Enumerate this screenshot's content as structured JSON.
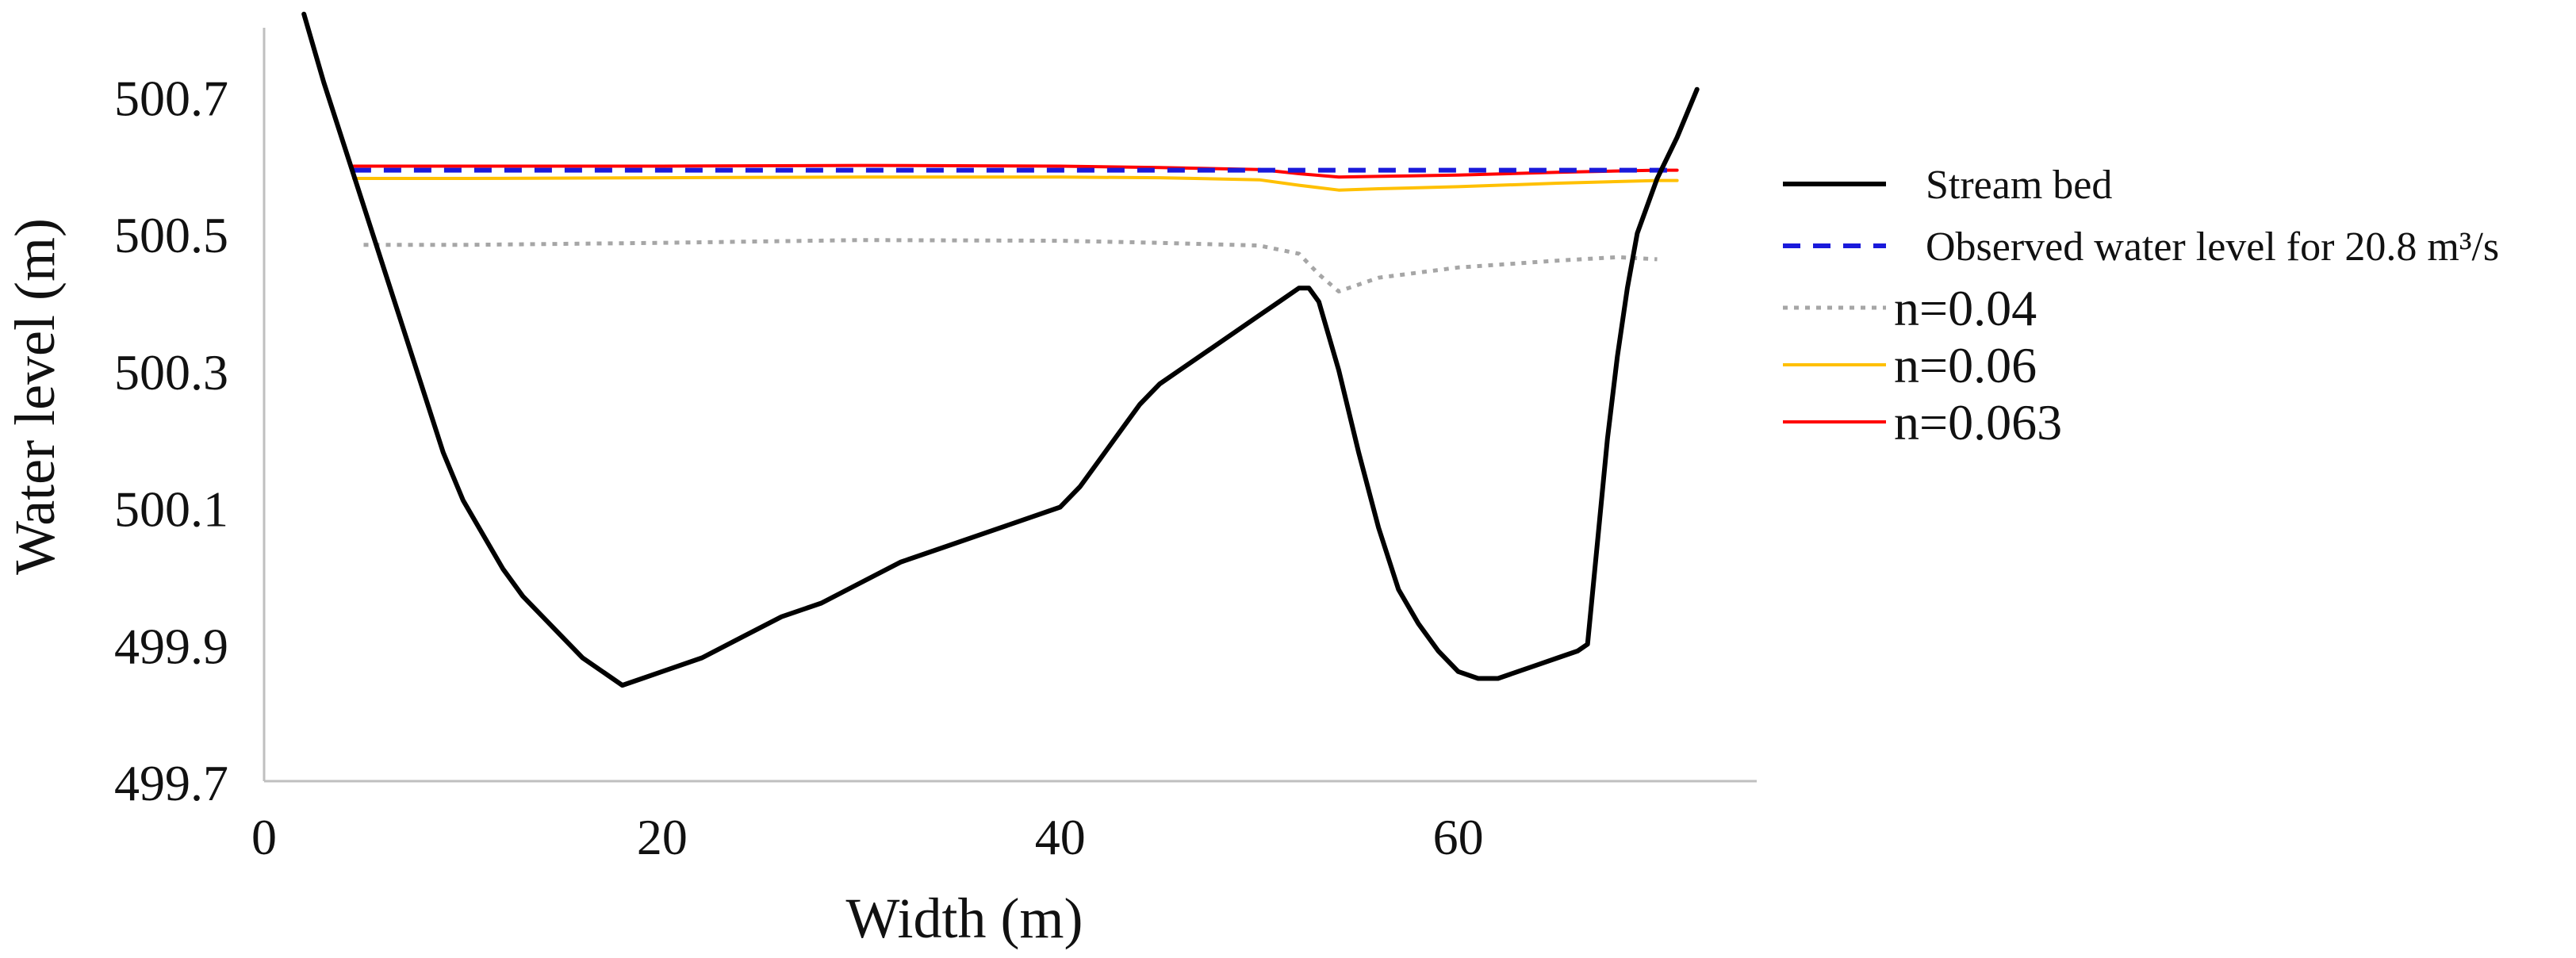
{
  "chart_data": {
    "type": "line",
    "title": "",
    "xlabel": "Width (m)",
    "ylabel": "Water level (m)",
    "xlim": [
      0,
      75
    ],
    "ylim": [
      499.7,
      500.8
    ],
    "xticks": [
      0,
      20,
      40,
      60
    ],
    "xtick_labels": [
      "0",
      "20",
      "40",
      "60"
    ],
    "yticks": [
      499.7,
      499.9,
      500.1,
      500.3,
      500.5,
      500.7
    ],
    "ytick_labels": [
      "499.7",
      "499.9",
      "500.1",
      "500.3",
      "500.5",
      "500.7"
    ],
    "grid": false,
    "legend_position": "right",
    "series": [
      {
        "name": "Stream bed",
        "color": "#000000",
        "dash": "solid",
        "x": [
          2,
          3,
          4,
          5,
          6,
          7,
          8,
          9,
          10,
          11,
          12,
          13,
          14,
          15,
          16,
          17,
          18,
          19,
          20,
          22,
          24,
          26,
          28,
          30,
          32,
          34,
          36,
          38,
          40,
          41,
          42,
          43,
          44,
          45,
          46,
          48,
          50,
          51,
          52,
          52.5,
          53,
          54,
          55,
          56,
          57,
          58,
          59,
          60,
          61,
          62,
          63,
          64,
          65,
          66,
          66.5,
          67,
          67.5,
          68,
          68.5,
          69,
          70,
          71,
          72
        ],
        "y": [
          500.82,
          500.72,
          500.63,
          500.54,
          500.45,
          500.36,
          500.27,
          500.18,
          500.11,
          500.06,
          500.01,
          499.97,
          499.94,
          499.91,
          499.88,
          499.86,
          499.84,
          499.85,
          499.86,
          499.88,
          499.91,
          499.94,
          499.96,
          499.99,
          500.02,
          500.04,
          500.06,
          500.08,
          500.1,
          500.13,
          500.17,
          500.21,
          500.25,
          500.28,
          500.3,
          500.34,
          500.38,
          500.4,
          500.42,
          500.42,
          500.4,
          500.3,
          500.18,
          500.07,
          499.98,
          499.93,
          499.89,
          499.86,
          499.85,
          499.85,
          499.86,
          499.87,
          499.88,
          499.89,
          499.9,
          500.05,
          500.2,
          500.32,
          500.42,
          500.5,
          500.58,
          500.64,
          500.71
        ]
      },
      {
        "name": "Observed water level for 20.8 m³/s",
        "color": "#1a1adb",
        "dash": "dashed",
        "x": [
          4.5,
          10,
          20,
          30,
          40,
          50,
          53,
          60,
          70,
          71
        ],
        "y": [
          500.592,
          500.592,
          500.592,
          500.592,
          500.592,
          500.592,
          500.592,
          500.592,
          500.592,
          500.592
        ]
      },
      {
        "name": "n=0.04",
        "color": "#a6a6a6",
        "dash": "dotted",
        "x": [
          5,
          10,
          20,
          30,
          40,
          45,
          50,
          52,
          53,
          54,
          56,
          60,
          65,
          68,
          70
        ],
        "y": [
          500.483,
          500.483,
          500.486,
          500.49,
          500.489,
          500.486,
          500.482,
          500.47,
          500.44,
          500.415,
          500.435,
          500.45,
          500.46,
          500.465,
          500.462
        ]
      },
      {
        "name": "n=0.06",
        "color": "#ffc000",
        "dash": "solid",
        "x": [
          4.5,
          10,
          20,
          30,
          40,
          45,
          50,
          52,
          54,
          56,
          60,
          65,
          70,
          71
        ],
        "y": [
          500.58,
          500.58,
          500.581,
          500.582,
          500.582,
          500.581,
          500.578,
          500.57,
          500.563,
          500.565,
          500.568,
          500.573,
          500.577,
          500.577
        ]
      },
      {
        "name": "n=0.063",
        "color": "#ff0000",
        "dash": "solid",
        "x": [
          4.5,
          10,
          20,
          30,
          40,
          45,
          50,
          52,
          54,
          56,
          60,
          65,
          70,
          71
        ],
        "y": [
          500.598,
          500.598,
          500.598,
          500.599,
          500.598,
          500.596,
          500.593,
          500.587,
          500.582,
          500.583,
          500.585,
          500.589,
          500.592,
          500.592
        ]
      }
    ]
  }
}
